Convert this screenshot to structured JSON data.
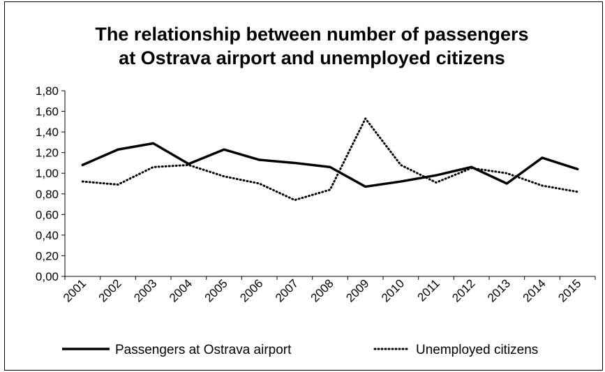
{
  "chart_data": {
    "type": "line",
    "title_lines": [
      "The relationship between number of passengers",
      "at Ostrava airport and unemployed citizens"
    ],
    "xlabel": "",
    "ylabel": "",
    "categories": [
      "2001",
      "2002",
      "2003",
      "2004",
      "2005",
      "2006",
      "2007",
      "2008",
      "2009",
      "2010",
      "2011",
      "2012",
      "2013",
      "2014",
      "2015"
    ],
    "ylim": [
      0,
      1.8
    ],
    "y_ticks": [
      "0,00",
      "0,20",
      "0,40",
      "0,60",
      "0,80",
      "1,00",
      "1,20",
      "1,40",
      "1,60",
      "1,80"
    ],
    "grid": false,
    "legend_position": "bottom",
    "series": [
      {
        "name": "Passengers at Ostrava airport",
        "style": "solid",
        "color": "#000000",
        "values": [
          1.08,
          1.23,
          1.29,
          1.09,
          1.23,
          1.13,
          1.1,
          1.06,
          0.87,
          0.92,
          0.98,
          1.06,
          0.9,
          1.15,
          1.04
        ]
      },
      {
        "name": "Unemployed citizens",
        "style": "dotted",
        "color": "#000000",
        "values": [
          0.92,
          0.89,
          1.06,
          1.08,
          0.97,
          0.9,
          0.74,
          0.84,
          1.53,
          1.08,
          0.91,
          1.05,
          1.0,
          0.88,
          0.82
        ]
      }
    ]
  }
}
